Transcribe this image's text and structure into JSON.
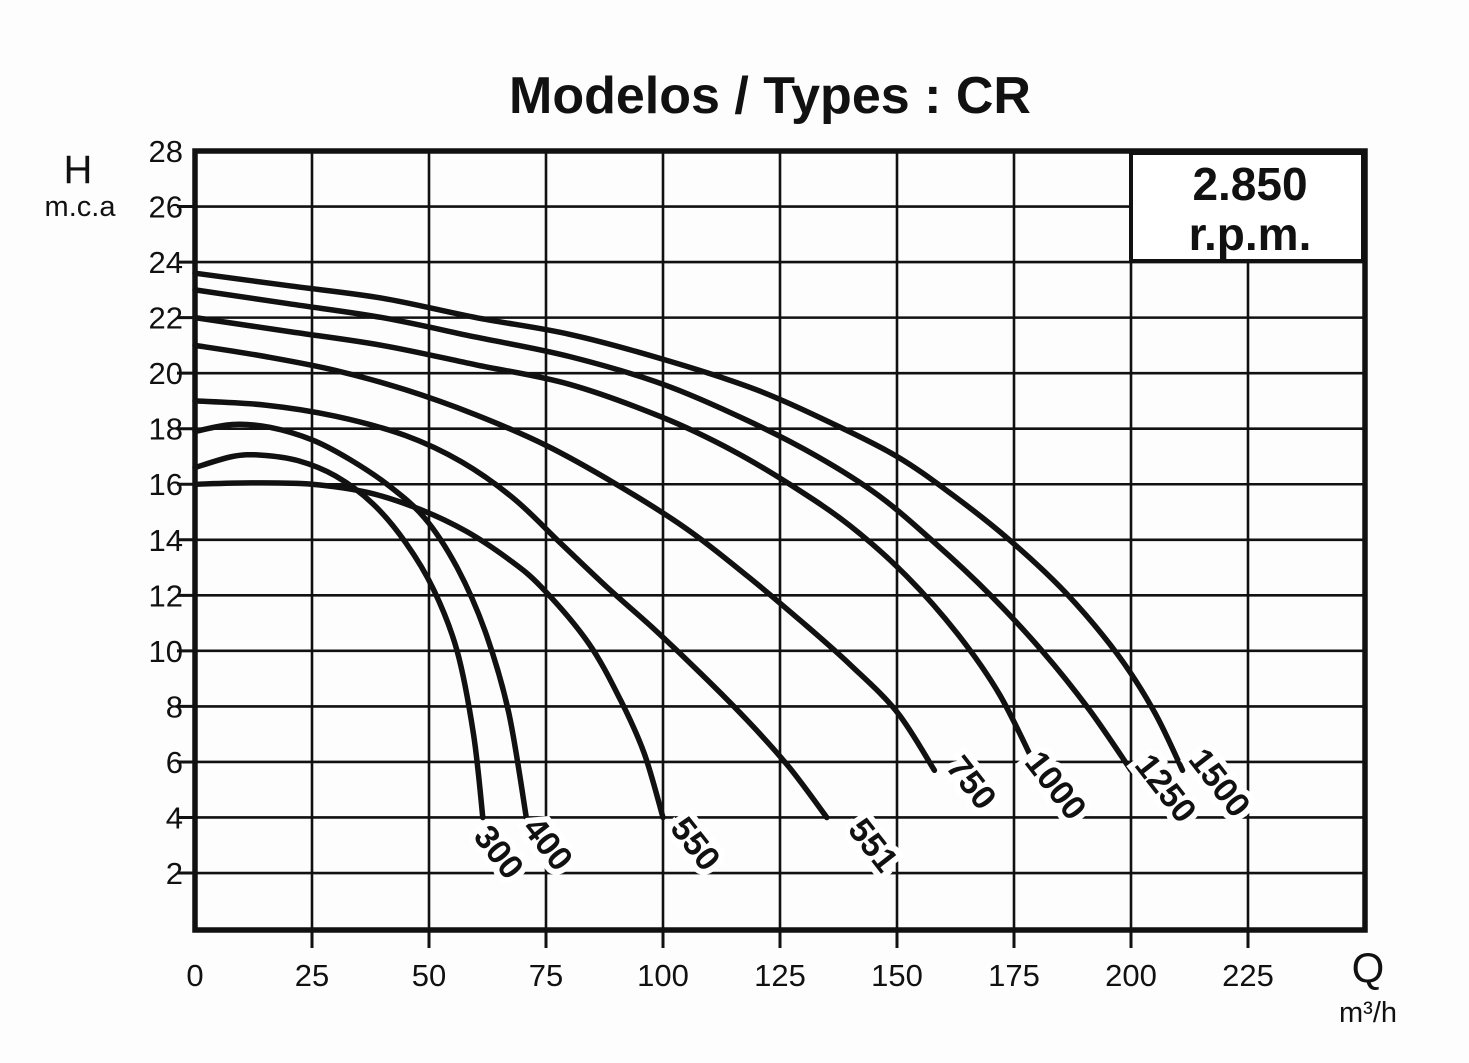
{
  "title": "Modelos / Types : CR",
  "rpm_label": {
    "speed": "2.850",
    "unit": "r.p.m."
  },
  "axes": {
    "y_label": "H",
    "y_sublabel": "m.c.a",
    "x_label": "Q",
    "x_sublabel": "m³/h"
  },
  "colors": {
    "ink": "#111111",
    "background": "#fdfdfd"
  },
  "chart_data": {
    "type": "line",
    "title": "Modelos / Types : CR",
    "annotation": "2.850 r.p.m.",
    "xlabel": "Q (m³/h)",
    "ylabel": "H (m.c.a)",
    "xlim": [
      0,
      250
    ],
    "ylim": [
      0,
      28
    ],
    "grid": true,
    "x_ticks": [
      0,
      25,
      50,
      75,
      100,
      125,
      150,
      175,
      200,
      225
    ],
    "y_ticks": [
      28,
      26,
      24,
      22,
      20,
      18,
      16,
      14,
      12,
      10,
      8,
      6,
      4,
      2
    ],
    "series": [
      {
        "name": "300",
        "points": [
          [
            0,
            16.6
          ],
          [
            8,
            17.0
          ],
          [
            14,
            17.05
          ],
          [
            22,
            16.85
          ],
          [
            30,
            16.3
          ],
          [
            38,
            15.3
          ],
          [
            45,
            13.9
          ],
          [
            51,
            12.2
          ],
          [
            56,
            10.0
          ],
          [
            59.5,
            7.0
          ],
          [
            61.5,
            4.0
          ]
        ],
        "label": {
          "q": 63,
          "h": 2.5,
          "angle": 52
        }
      },
      {
        "name": "400",
        "points": [
          [
            0,
            17.9
          ],
          [
            8,
            18.15
          ],
          [
            16,
            18.05
          ],
          [
            25,
            17.6
          ],
          [
            33,
            16.9
          ],
          [
            41,
            16.0
          ],
          [
            49,
            14.8
          ],
          [
            56,
            13.0
          ],
          [
            62,
            10.7
          ],
          [
            67,
            7.8
          ],
          [
            70.8,
            4.0
          ]
        ],
        "label": {
          "q": 73.5,
          "h": 2.8,
          "angle": 52
        }
      },
      {
        "name": "550",
        "points": [
          [
            0,
            16.0
          ],
          [
            12,
            16.05
          ],
          [
            25,
            16.0
          ],
          [
            37,
            15.7
          ],
          [
            48,
            15.1
          ],
          [
            58,
            14.3
          ],
          [
            67,
            13.3
          ],
          [
            74,
            12.3
          ],
          [
            84,
            10.3
          ],
          [
            91,
            8.2
          ],
          [
            96,
            6.3
          ],
          [
            100,
            4.0
          ]
        ],
        "label": {
          "q": 105,
          "h": 2.8,
          "angle": 52
        }
      },
      {
        "name": "551",
        "points": [
          [
            0,
            19.0
          ],
          [
            15,
            18.85
          ],
          [
            30,
            18.45
          ],
          [
            45,
            17.75
          ],
          [
            57,
            16.8
          ],
          [
            68,
            15.5
          ],
          [
            78,
            13.9
          ],
          [
            88,
            12.3
          ],
          [
            98,
            10.8
          ],
          [
            108,
            9.2
          ],
          [
            118,
            7.5
          ],
          [
            127,
            5.8
          ],
          [
            135,
            4.0
          ]
        ],
        "label": {
          "q": 143,
          "h": 2.75,
          "angle": 52
        }
      },
      {
        "name": "750",
        "points": [
          [
            0,
            21.0
          ],
          [
            15,
            20.6
          ],
          [
            30,
            20.1
          ],
          [
            45,
            19.4
          ],
          [
            60,
            18.5
          ],
          [
            75,
            17.4
          ],
          [
            90,
            16.0
          ],
          [
            105,
            14.4
          ],
          [
            118,
            12.7
          ],
          [
            130,
            11.0
          ],
          [
            140,
            9.5
          ],
          [
            150,
            7.8
          ],
          [
            158,
            5.7
          ]
        ],
        "label": {
          "q": 164,
          "h": 5.0,
          "angle": 52
        }
      },
      {
        "name": "1000",
        "points": [
          [
            0,
            22.0
          ],
          [
            20,
            21.5
          ],
          [
            40,
            21.0
          ],
          [
            60,
            20.3
          ],
          [
            80,
            19.6
          ],
          [
            100,
            18.4
          ],
          [
            115,
            17.2
          ],
          [
            128,
            15.9
          ],
          [
            140,
            14.5
          ],
          [
            152,
            12.7
          ],
          [
            163,
            10.6
          ],
          [
            172,
            8.4
          ],
          [
            180,
            5.7
          ]
        ],
        "label": {
          "q": 182,
          "h": 4.9,
          "angle": 52
        }
      },
      {
        "name": "1250",
        "points": [
          [
            0,
            23.0
          ],
          [
            20,
            22.5
          ],
          [
            40,
            22.0
          ],
          [
            60,
            21.3
          ],
          [
            80,
            20.6
          ],
          [
            100,
            19.6
          ],
          [
            118,
            18.3
          ],
          [
            133,
            17.0
          ],
          [
            146,
            15.6
          ],
          [
            158,
            13.9
          ],
          [
            170,
            12.0
          ],
          [
            181,
            10.0
          ],
          [
            191,
            7.9
          ],
          [
            200,
            5.7
          ]
        ],
        "label": {
          "q": 205.5,
          "h": 4.8,
          "angle": 52
        }
      },
      {
        "name": "1500",
        "points": [
          [
            0,
            23.6
          ],
          [
            20,
            23.15
          ],
          [
            40,
            22.7
          ],
          [
            60,
            22.0
          ],
          [
            80,
            21.4
          ],
          [
            100,
            20.5
          ],
          [
            120,
            19.4
          ],
          [
            136,
            18.2
          ],
          [
            150,
            17.0
          ],
          [
            162,
            15.6
          ],
          [
            174,
            14.0
          ],
          [
            186,
            12.1
          ],
          [
            197,
            9.9
          ],
          [
            205,
            7.8
          ],
          [
            211,
            5.7
          ]
        ],
        "label": {
          "q": 217,
          "h": 5.0,
          "angle": 52
        }
      }
    ]
  }
}
